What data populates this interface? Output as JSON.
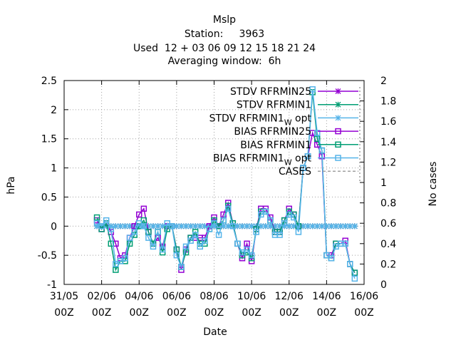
{
  "chart_data": {
    "type": "line",
    "title_lines": [
      "Mslp",
      "Station:     3963",
      "Used  12 + 03 06 09 12 15 18 21 24",
      "Averaging window:  6h"
    ],
    "xlabel": "Date",
    "ylabel": "hPa",
    "y2label": "No cases",
    "xlim": [
      "31/05 00Z",
      "16/06 00Z"
    ],
    "ylim": [
      -1,
      2.5
    ],
    "y2lim": [
      0,
      2
    ],
    "xticks": [
      {
        "t": 0,
        "line1": "31/05",
        "line2": "00Z"
      },
      {
        "t": 2,
        "line1": "02/06",
        "line2": "00Z"
      },
      {
        "t": 4,
        "line1": "04/06",
        "line2": "00Z"
      },
      {
        "t": 6,
        "line1": "06/06",
        "line2": "00Z"
      },
      {
        "t": 8,
        "line1": "08/06",
        "line2": "00Z"
      },
      {
        "t": 10,
        "line1": "10/06",
        "line2": "00Z"
      },
      {
        "t": 12,
        "line1": "12/06",
        "line2": "00Z"
      },
      {
        "t": 14,
        "line1": "14/06",
        "line2": "00Z"
      },
      {
        "t": 16,
        "line1": "16/06",
        "line2": "00Z"
      }
    ],
    "yticks": [
      "-1",
      "-0.5",
      "0",
      "0.5",
      "1",
      "1.5",
      "2",
      "2.5"
    ],
    "y2ticks": [
      "0",
      "0.2",
      "0.4",
      "0.6",
      "0.8",
      "1",
      "1.2",
      "1.4",
      "1.6",
      "1.8",
      "2"
    ],
    "grid": true,
    "legend_position": "top-right",
    "x_days": [
      1.75,
      2,
      2.25,
      2.5,
      2.75,
      3,
      3.25,
      3.5,
      3.75,
      4,
      4.25,
      4.5,
      4.75,
      5,
      5.25,
      5.5,
      5.75,
      6,
      6.25,
      6.5,
      6.75,
      7,
      7.25,
      7.5,
      7.75,
      8,
      8.25,
      8.5,
      8.75,
      9,
      9.25,
      9.5,
      9.75,
      10,
      10.25,
      10.5,
      10.75,
      11,
      11.25,
      11.5,
      11.75,
      12,
      12.25,
      12.5,
      12.75,
      13,
      13.25,
      13.5,
      13.75,
      14,
      14.25,
      14.5,
      14.75,
      15,
      15.25,
      15.5
    ],
    "series": [
      {
        "name": "STDV RFRMIN25",
        "color": "#9400d3",
        "marker": "star",
        "axis": "y1",
        "values": [
          0,
          0,
          0,
          0,
          0,
          0,
          0,
          0,
          0,
          0,
          0,
          0,
          0,
          0,
          0,
          0,
          0,
          0,
          0,
          0,
          0,
          0,
          0,
          0,
          0,
          0,
          0,
          0,
          0,
          0,
          0,
          0,
          0,
          0,
          0,
          0,
          0,
          0,
          0,
          0,
          0,
          0,
          0,
          0,
          0,
          0,
          0,
          0,
          0,
          0,
          0,
          0,
          0,
          0,
          0,
          0
        ]
      },
      {
        "name": "STDV RFRMIN1",
        "color": "#009e73",
        "marker": "star",
        "axis": "y1",
        "values": [
          0,
          0,
          0,
          0,
          0,
          0,
          0,
          0,
          0,
          0,
          0,
          0,
          0,
          0,
          0,
          0,
          0,
          0,
          0,
          0,
          0,
          0,
          0,
          0,
          0,
          0,
          0,
          0,
          0,
          0,
          0,
          0,
          0,
          0,
          0,
          0,
          0,
          0,
          0,
          0,
          0,
          0,
          0,
          0,
          0,
          0,
          0,
          0,
          0,
          0,
          0,
          0,
          0,
          0,
          0,
          0
        ]
      },
      {
        "name": "STDV RFRMIN1_W opt",
        "legend_main": "STDV RFRMIN1",
        "legend_sub": "W",
        "legend_tail": " opt",
        "color": "#56b4e9",
        "marker": "star",
        "axis": "y1",
        "values": [
          0,
          0,
          0,
          0,
          0,
          0,
          0,
          0,
          0,
          0,
          0,
          0,
          0,
          0,
          0,
          0,
          0,
          0,
          0,
          0,
          0,
          0,
          0,
          0,
          0,
          0,
          0,
          0,
          0,
          0,
          0,
          0,
          0,
          0,
          0,
          0,
          0,
          0,
          0,
          0,
          0,
          0,
          0,
          0,
          0,
          0,
          0,
          0,
          0,
          0,
          0,
          0,
          0,
          0,
          0,
          0
        ]
      },
      {
        "name": "BIAS RFRMIN25",
        "color": "#9400d3",
        "marker": "square",
        "axis": "y1",
        "values": [
          0.1,
          -0.05,
          0.05,
          -0.1,
          -0.3,
          -0.55,
          -0.5,
          -0.2,
          0.0,
          0.2,
          0.3,
          -0.1,
          -0.3,
          -0.2,
          -0.35,
          0.0,
          0.0,
          -0.4,
          -0.75,
          -0.4,
          -0.2,
          -0.2,
          -0.2,
          -0.2,
          0.0,
          0.15,
          0.0,
          0.2,
          0.4,
          0.05,
          -0.3,
          -0.55,
          -0.3,
          -0.6,
          -0.05,
          0.3,
          0.3,
          0.15,
          -0.1,
          -0.1,
          0.1,
          0.3,
          0.2,
          0.0,
          1.0,
          1.2,
          1.6,
          1.4,
          1.2,
          -0.5,
          -0.5,
          -0.3,
          -0.3,
          -0.25,
          -0.65,
          -0.8
        ]
      },
      {
        "name": "BIAS RFRMIN1",
        "color": "#009e73",
        "marker": "square",
        "axis": "y1",
        "values": [
          0.15,
          -0.05,
          0.05,
          -0.3,
          -0.75,
          -0.6,
          -0.6,
          -0.3,
          -0.15,
          0.0,
          0.1,
          -0.1,
          -0.3,
          -0.1,
          -0.45,
          -0.05,
          0.0,
          -0.4,
          -0.7,
          -0.45,
          -0.2,
          -0.1,
          -0.3,
          -0.3,
          -0.05,
          0.1,
          0.0,
          0.1,
          0.35,
          0.05,
          -0.3,
          -0.5,
          -0.45,
          -0.55,
          -0.05,
          0.25,
          0.25,
          0.1,
          -0.1,
          -0.1,
          0.1,
          0.25,
          0.2,
          0.0,
          1.0,
          1.2,
          2.3,
          1.5,
          1.3,
          -0.5,
          -0.55,
          -0.3,
          -0.3,
          -0.3,
          -0.65,
          -0.8
        ]
      },
      {
        "name": "BIAS RFRMIN1_W opt",
        "legend_main": "BIAS RFRMIN1",
        "legend_sub": "W",
        "legend_tail": " opt",
        "color": "#56b4e9",
        "marker": "square",
        "axis": "y1",
        "values": [
          0.05,
          0.0,
          0.1,
          -0.05,
          -0.65,
          -0.6,
          -0.55,
          -0.2,
          -0.1,
          0.05,
          0.0,
          -0.2,
          -0.35,
          -0.1,
          -0.4,
          0.05,
          0.0,
          -0.5,
          -0.7,
          -0.35,
          -0.25,
          -0.15,
          -0.35,
          -0.25,
          -0.05,
          0.05,
          -0.15,
          0.1,
          0.3,
          0.0,
          -0.3,
          -0.45,
          -0.4,
          -0.5,
          -0.1,
          0.2,
          0.25,
          0.1,
          -0.15,
          -0.15,
          0.05,
          0.2,
          0.15,
          -0.1,
          1.0,
          1.2,
          2.35,
          1.6,
          1.3,
          -0.5,
          -0.55,
          -0.35,
          -0.3,
          -0.3,
          -0.65,
          -0.9
        ]
      },
      {
        "name": "CASES",
        "color": "#a0a0a0",
        "marker": "none",
        "dashed": true,
        "axis": "y2",
        "values": [
          1,
          1,
          1,
          1,
          1,
          1,
          1,
          1,
          1,
          1,
          1,
          1,
          1,
          1,
          1,
          1,
          1,
          1,
          1,
          1,
          1,
          1,
          1,
          1,
          1,
          1,
          1,
          1,
          1,
          1,
          1,
          1,
          1,
          1,
          1,
          1,
          1,
          1,
          1,
          1,
          1,
          1,
          1,
          1,
          1,
          1,
          1,
          1,
          1,
          1,
          1,
          1,
          1,
          1,
          1,
          1
        ],
        "visible": false
      }
    ]
  }
}
